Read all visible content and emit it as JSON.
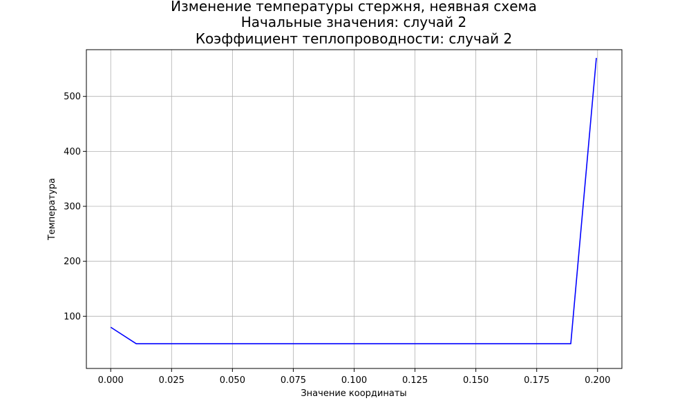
{
  "chart_data": {
    "type": "line",
    "title": [
      "Изменение температуры стержня, неявная схема",
      "Начальные значения: случай 2",
      "Коэффициент теплопроводности: случай 2"
    ],
    "xlabel": "Значение координаты",
    "ylabel": "Температура",
    "xlim": [
      -0.01,
      0.21
    ],
    "ylim": [
      5,
      585
    ],
    "xticks": [
      0.0,
      0.025,
      0.05,
      0.075,
      0.1,
      0.125,
      0.15,
      0.175,
      0.2
    ],
    "xtick_labels": [
      "0.000",
      "0.025",
      "0.050",
      "0.075",
      "0.100",
      "0.125",
      "0.150",
      "0.175",
      "0.200"
    ],
    "yticks": [
      100,
      200,
      300,
      400,
      500
    ],
    "ytick_labels": [
      "100",
      "200",
      "300",
      "400",
      "500"
    ],
    "grid": true,
    "series": [
      {
        "color": "#0000ff",
        "x": [
          0.0,
          0.0105,
          0.189,
          0.1995
        ],
        "y": [
          80,
          50,
          50,
          570
        ]
      }
    ]
  }
}
